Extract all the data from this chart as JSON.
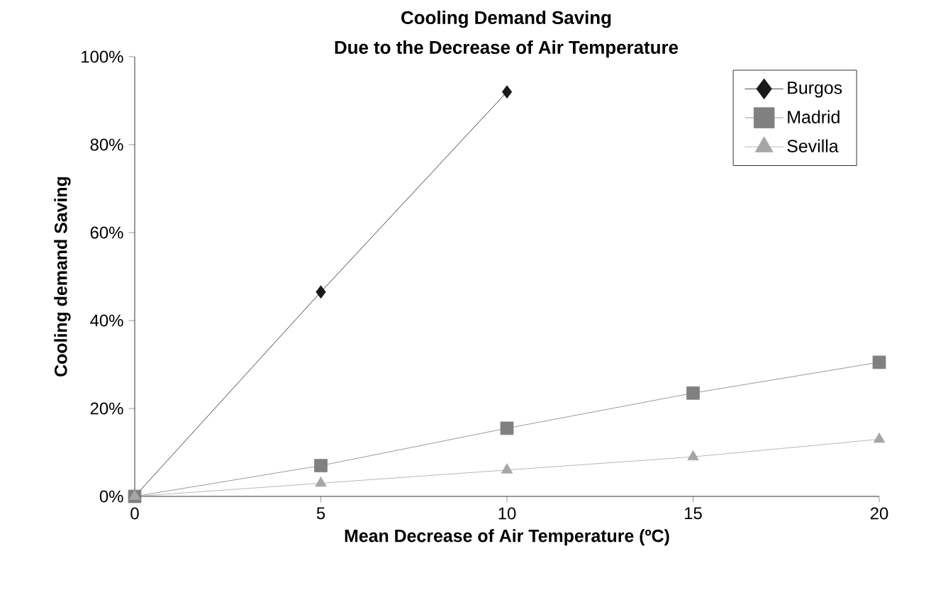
{
  "chart_data": {
    "type": "line",
    "title": "Cooling Demand Saving",
    "subtitle": "Due to the Decrease of Air Temperature",
    "xlabel": "Mean Decrease of Air Temperature (ºC)",
    "ylabel": "Cooling demand Saving",
    "x": [
      0,
      5,
      10,
      15,
      20
    ],
    "series": [
      {
        "name": "Burgos",
        "color": "#1a1a1a",
        "marker": "diamond",
        "values": [
          0,
          46.5,
          92,
          null,
          null
        ]
      },
      {
        "name": "Madrid",
        "color": "#808080",
        "marker": "square",
        "values": [
          0,
          7,
          15.5,
          23.5,
          30.5
        ]
      },
      {
        "name": "Sevilla",
        "color": "#a6a6a6",
        "marker": "triangle",
        "values": [
          0,
          3,
          6,
          9,
          13
        ]
      }
    ],
    "xlim": [
      0,
      20
    ],
    "xticks": [
      0,
      5,
      10,
      15,
      20
    ],
    "ylim": [
      0,
      100
    ],
    "yticks": [
      {
        "value": 0,
        "label": "0%"
      },
      {
        "value": 20,
        "label": "20%"
      },
      {
        "value": 40,
        "label": "40%"
      },
      {
        "value": 60,
        "label": "60%"
      },
      {
        "value": 80,
        "label": "80%"
      },
      {
        "value": 100,
        "label": "100%"
      }
    ],
    "legend": "top right",
    "grid": false
  }
}
